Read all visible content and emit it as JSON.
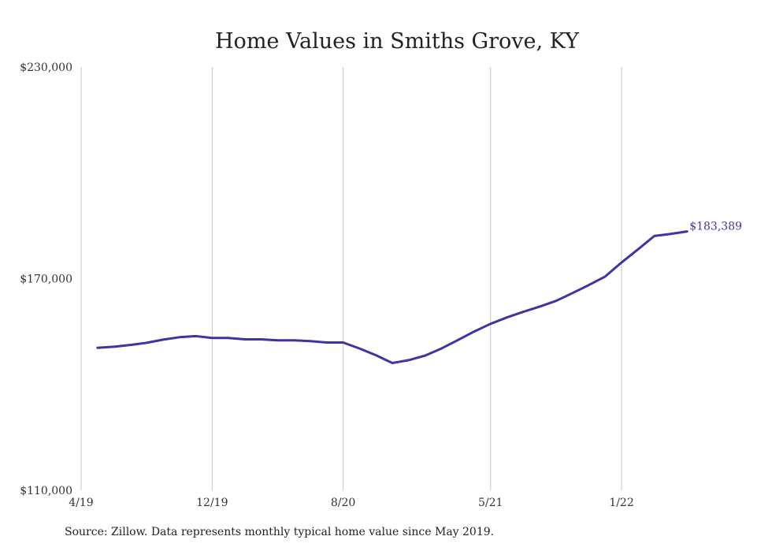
{
  "chart_data": {
    "type": "line",
    "title": "Home Values in Smiths Grove, KY",
    "xlabel": "",
    "ylabel": "",
    "ylim": [
      110000,
      230000
    ],
    "yticks": [
      {
        "value": 110000,
        "label": "$110,000"
      },
      {
        "value": 170000,
        "label": "$170,000"
      },
      {
        "value": 230000,
        "label": "$230,000"
      }
    ],
    "xticks": [
      {
        "index": -1,
        "label": "4/19"
      },
      {
        "index": 7,
        "label": "12/19"
      },
      {
        "index": 15,
        "label": "8/20"
      },
      {
        "index": 24,
        "label": "5/21"
      },
      {
        "index": 32,
        "label": "1/22"
      }
    ],
    "x_range_index": [
      -1,
      37
    ],
    "grid": "vertical",
    "series": [
      {
        "color": "#3d35a0",
        "x": [
          "5/19",
          "6/19",
          "7/19",
          "8/19",
          "9/19",
          "10/19",
          "11/19",
          "12/19",
          "1/20",
          "2/20",
          "3/20",
          "4/20",
          "5/20",
          "6/20",
          "7/20",
          "8/20",
          "9/20",
          "10/20",
          "11/20",
          "12/20",
          "1/21",
          "2/21",
          "3/21",
          "4/21",
          "5/21",
          "6/21",
          "7/21",
          "8/21",
          "9/21",
          "10/21",
          "11/21",
          "12/21",
          "1/22",
          "2/22",
          "3/22",
          "4/22",
          "5/22"
        ],
        "values": [
          150400,
          150700,
          151200,
          151800,
          152700,
          153400,
          153700,
          153200,
          153200,
          152800,
          152800,
          152500,
          152500,
          152300,
          151900,
          151900,
          150200,
          148300,
          146100,
          146900,
          148200,
          150200,
          152600,
          155000,
          157200,
          159000,
          160600,
          162100,
          163700,
          165900,
          168200,
          170600,
          174600,
          178300,
          182100,
          182700,
          183389
        ]
      }
    ],
    "end_label": "$183,389"
  },
  "source": "Source: Zillow. Data represents monthly typical home value since May 2019."
}
